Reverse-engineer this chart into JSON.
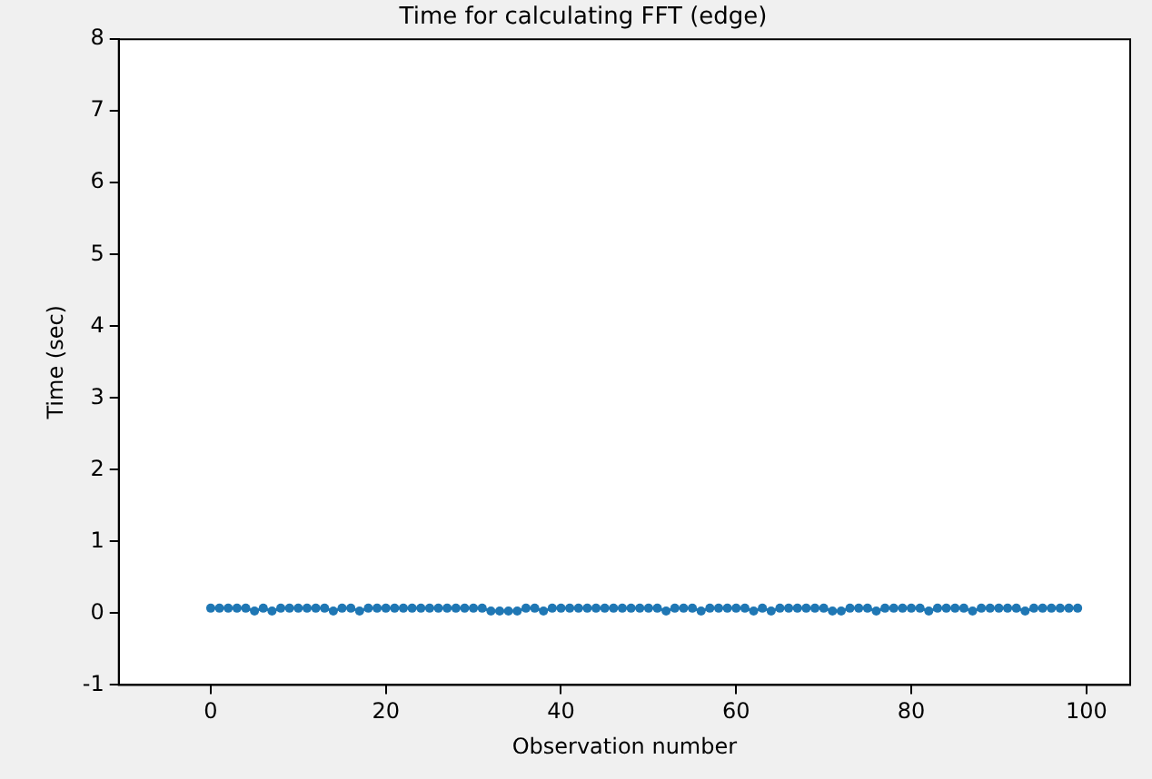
{
  "chart_data": {
    "type": "line",
    "title": "Time for calculating FFT (edge)",
    "xlabel": "Observation number",
    "ylabel": "Time (sec)",
    "x": [
      0,
      1,
      2,
      3,
      4,
      5,
      6,
      7,
      8,
      9,
      10,
      11,
      12,
      13,
      14,
      15,
      16,
      17,
      18,
      19,
      20,
      21,
      22,
      23,
      24,
      25,
      26,
      27,
      28,
      29,
      30,
      31,
      32,
      33,
      34,
      35,
      36,
      37,
      38,
      39,
      40,
      41,
      42,
      43,
      44,
      45,
      46,
      47,
      48,
      49,
      50,
      51,
      52,
      53,
      54,
      55,
      56,
      57,
      58,
      59,
      60,
      61,
      62,
      63,
      64,
      65,
      66,
      67,
      68,
      69,
      70,
      71,
      72,
      73,
      74,
      75,
      76,
      77,
      78,
      79,
      80,
      81,
      82,
      83,
      84,
      85,
      86,
      87,
      88,
      89,
      90,
      91,
      92,
      93,
      94,
      95,
      96,
      97,
      98,
      99
    ],
    "series": [
      {
        "color": "#1f77b4",
        "values": [
          0.07,
          0.07,
          0.07,
          0.07,
          0.07,
          0.03,
          0.07,
          0.03,
          0.07,
          0.07,
          0.07,
          0.07,
          0.07,
          0.07,
          0.03,
          0.07,
          0.07,
          0.03,
          0.07,
          0.07,
          0.07,
          0.07,
          0.07,
          0.07,
          0.07,
          0.07,
          0.07,
          0.07,
          0.07,
          0.07,
          0.07,
          0.07,
          0.03,
          0.03,
          0.03,
          0.03,
          0.07,
          0.07,
          0.03,
          0.07,
          0.07,
          0.07,
          0.07,
          0.07,
          0.07,
          0.07,
          0.07,
          0.07,
          0.07,
          0.07,
          0.07,
          0.07,
          0.03,
          0.07,
          0.07,
          0.07,
          0.03,
          0.07,
          0.07,
          0.07,
          0.07,
          0.07,
          0.03,
          0.07,
          0.03,
          0.07,
          0.07,
          0.07,
          0.07,
          0.07,
          0.07,
          0.03,
          0.03,
          0.07,
          0.07,
          0.07,
          0.03,
          0.07,
          0.07,
          0.07,
          0.07,
          0.07,
          0.03,
          0.07,
          0.07,
          0.07,
          0.07,
          0.03,
          0.07,
          0.07,
          0.07,
          0.07,
          0.07,
          0.03,
          0.07,
          0.07,
          0.07,
          0.07,
          0.07,
          0.07
        ]
      }
    ],
    "xlim": [
      -10.5,
      105
    ],
    "xticks": [
      0,
      20,
      40,
      60,
      80,
      100
    ],
    "ylim": [
      -1,
      8
    ],
    "yticks": [
      -1,
      0,
      1,
      2,
      3,
      4,
      5,
      6,
      7,
      8
    ],
    "grid": false,
    "legend": false,
    "marker": "circle",
    "line_style": "solid"
  }
}
